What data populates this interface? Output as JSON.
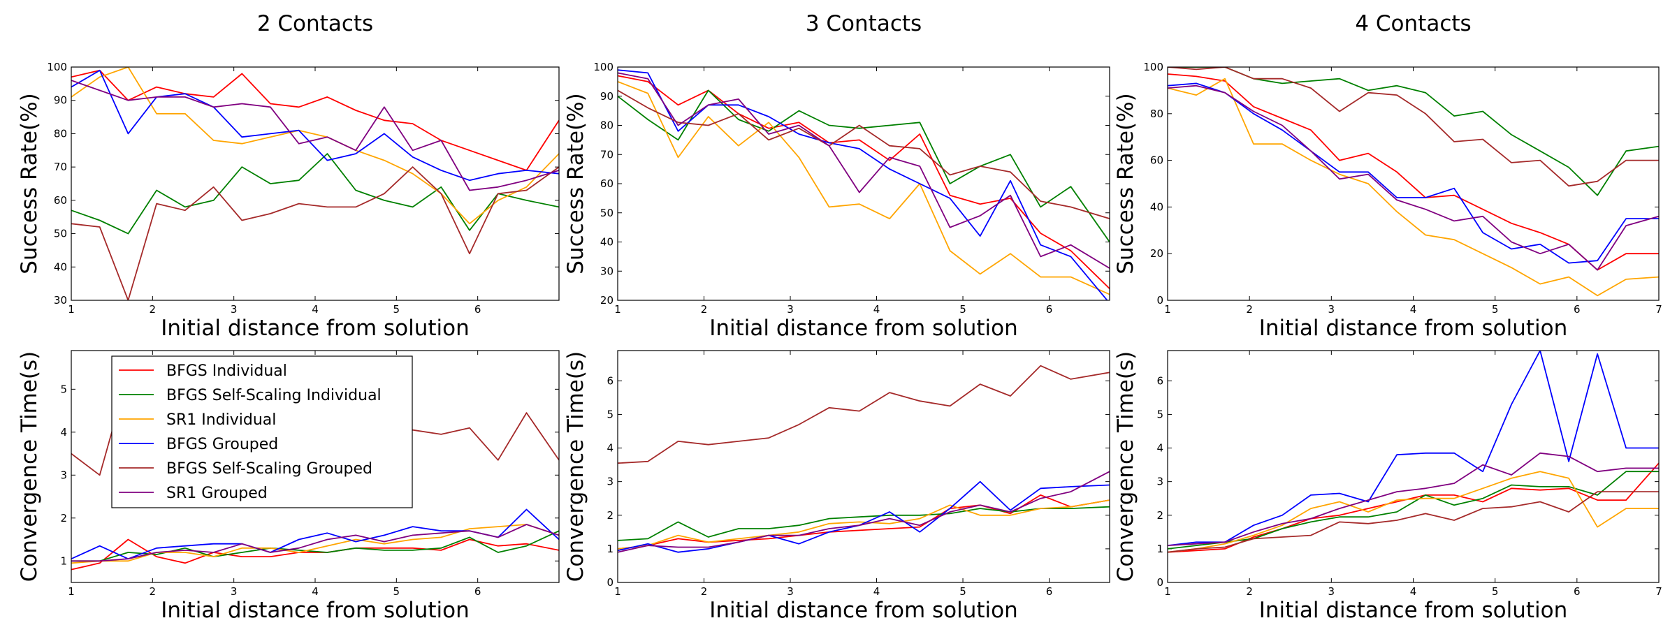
{
  "chart_data": [
    {
      "type": "line",
      "title": "2 Contacts",
      "xlabel": "Initial distance from solution",
      "ylabel": "Success Rate(%)",
      "xlim": [
        1,
        7
      ],
      "ylim": [
        30,
        100
      ],
      "xticks": [
        1,
        2,
        3,
        4,
        5,
        6
      ],
      "yticks": [
        30,
        40,
        50,
        60,
        70,
        80,
        90,
        100
      ],
      "x": [
        1,
        1.35,
        1.7,
        2.05,
        2.4,
        2.75,
        3.1,
        3.45,
        3.8,
        4.15,
        4.5,
        4.85,
        5.2,
        5.55,
        5.9,
        6.25,
        6.6,
        7
      ],
      "series": [
        {
          "name": "BFGS Individual",
          "color": "#ff0000",
          "values": [
            97,
            99,
            90,
            94,
            92,
            91,
            98,
            89,
            88,
            91,
            87,
            84,
            83,
            78,
            75,
            72,
            69,
            84
          ]
        },
        {
          "name": "BFGS Self-Scaling Individual",
          "color": "#008000",
          "values": [
            57,
            54,
            50,
            63,
            58,
            60,
            70,
            65,
            66,
            74,
            63,
            60,
            58,
            64,
            51,
            62,
            60,
            58
          ]
        },
        {
          "name": "SR1 Individual",
          "color": "#ffa500",
          "values": [
            91,
            97,
            100,
            86,
            86,
            78,
            77,
            79,
            81,
            79,
            75,
            72,
            68,
            62,
            53,
            60,
            64,
            74
          ]
        },
        {
          "name": "BFGS Grouped",
          "color": "#0000ff",
          "values": [
            94,
            99,
            80,
            91,
            92,
            88,
            79,
            80,
            81,
            72,
            74,
            80,
            73,
            69,
            66,
            68,
            69,
            68
          ]
        },
        {
          "name": "BFGS Self-Scaling Grouped",
          "color": "#a52a2a",
          "values": [
            53,
            52,
            30,
            59,
            57,
            64,
            54,
            56,
            59,
            58,
            58,
            62,
            70,
            62,
            44,
            62,
            63,
            70
          ]
        },
        {
          "name": "SR1 Grouped",
          "color": "#800080",
          "values": [
            96,
            93,
            90,
            91,
            91,
            88,
            89,
            88,
            77,
            79,
            75,
            88,
            75,
            78,
            63,
            64,
            66,
            69
          ]
        }
      ]
    },
    {
      "type": "line",
      "title": "3 Contacts",
      "xlabel": "Initial distance from solution",
      "ylabel": "Success Rate(%)",
      "xlim": [
        1,
        6.7
      ],
      "ylim": [
        20,
        100
      ],
      "xticks": [
        1,
        2,
        3,
        4,
        5,
        6
      ],
      "yticks": [
        20,
        30,
        40,
        50,
        60,
        70,
        80,
        90,
        100
      ],
      "x": [
        1,
        1.35,
        1.7,
        2.05,
        2.4,
        2.75,
        3.1,
        3.45,
        3.8,
        4.15,
        4.5,
        4.85,
        5.2,
        5.55,
        5.9,
        6.25,
        6.7
      ],
      "series": [
        {
          "name": "BFGS Individual",
          "color": "#ff0000",
          "values": [
            97,
            95,
            87,
            92,
            84,
            79,
            81,
            74,
            75,
            68,
            77,
            56,
            53,
            55,
            43,
            37,
            24
          ]
        },
        {
          "name": "BFGS Self-Scaling Individual",
          "color": "#008000",
          "values": [
            90,
            82,
            75,
            92,
            82,
            78,
            85,
            80,
            79,
            80,
            81,
            60,
            66,
            70,
            52,
            59,
            40
          ]
        },
        {
          "name": "SR1 Individual",
          "color": "#ffa500",
          "values": [
            95,
            91,
            69,
            83,
            73,
            81,
            69,
            52,
            53,
            48,
            60,
            37,
            29,
            36,
            28,
            28,
            22
          ]
        },
        {
          "name": "BFGS Grouped",
          "color": "#0000ff",
          "values": [
            99,
            98,
            78,
            87,
            87,
            83,
            77,
            74,
            72,
            65,
            60,
            55,
            42,
            61,
            39,
            35,
            19
          ]
        },
        {
          "name": "BFGS Self-Scaling Grouped",
          "color": "#a52a2a",
          "values": [
            92,
            86,
            81,
            80,
            84,
            75,
            79,
            73,
            80,
            73,
            72,
            63,
            66,
            64,
            54,
            52,
            48
          ]
        },
        {
          "name": "SR1 Grouped",
          "color": "#800080",
          "values": [
            98,
            96,
            80,
            87,
            89,
            77,
            80,
            73,
            57,
            69,
            66,
            45,
            49,
            56,
            35,
            39,
            31
          ]
        }
      ]
    },
    {
      "type": "line",
      "title": "4 Contacts",
      "xlabel": "Initial distance from solution",
      "ylabel": "Success Rate(%)",
      "xlim": [
        1,
        7
      ],
      "ylim": [
        0,
        100
      ],
      "xticks": [
        1,
        2,
        3,
        4,
        5,
        6,
        7
      ],
      "yticks": [
        0,
        20,
        40,
        60,
        80,
        100
      ],
      "x": [
        1,
        1.35,
        1.7,
        2.05,
        2.4,
        2.75,
        3.1,
        3.45,
        3.8,
        4.15,
        4.5,
        4.85,
        5.2,
        5.55,
        5.9,
        6.25,
        6.6,
        7
      ],
      "series": [
        {
          "name": "BFGS Individual",
          "color": "#ff0000",
          "values": [
            97,
            96,
            94,
            83,
            78,
            73,
            60,
            63,
            55,
            44,
            45,
            39,
            33,
            29,
            24,
            13,
            20,
            20
          ]
        },
        {
          "name": "BFGS Self-Scaling Individual",
          "color": "#008000",
          "values": [
            100,
            100,
            100,
            95,
            93,
            94,
            95,
            90,
            92,
            89,
            79,
            81,
            71,
            64,
            57,
            45,
            64,
            66
          ]
        },
        {
          "name": "SR1 Individual",
          "color": "#ffa500",
          "values": [
            91,
            88,
            95,
            67,
            67,
            60,
            54,
            50,
            38,
            28,
            26,
            20,
            14,
            7,
            10,
            2,
            9,
            10
          ]
        },
        {
          "name": "BFGS Grouped",
          "color": "#0000ff",
          "values": [
            92,
            93,
            89,
            80,
            73,
            64,
            55,
            55,
            44,
            44,
            48,
            29,
            22,
            24,
            16,
            17,
            35,
            35
          ]
        },
        {
          "name": "BFGS Self-Scaling Grouped",
          "color": "#a52a2a",
          "values": [
            100,
            99,
            100,
            95,
            95,
            91,
            81,
            89,
            88,
            80,
            68,
            69,
            59,
            60,
            49,
            51,
            60,
            60
          ]
        },
        {
          "name": "SR1 Grouped",
          "color": "#800080",
          "values": [
            91,
            92,
            89,
            81,
            75,
            64,
            52,
            54,
            43,
            39,
            34,
            36,
            25,
            20,
            24,
            13,
            32,
            36
          ]
        }
      ]
    },
    {
      "type": "line",
      "title": "",
      "xlabel": "Initial distance from solution",
      "ylabel": "Convergence Time(s)",
      "xlim": [
        1,
        7
      ],
      "ylim": [
        0.5,
        5.9
      ],
      "xticks": [
        1,
        2,
        3,
        4,
        5,
        6
      ],
      "yticks": [
        1,
        2,
        3,
        4,
        5
      ],
      "legend": "upper-left",
      "x": [
        1,
        1.35,
        1.7,
        2.05,
        2.4,
        2.75,
        3.1,
        3.45,
        3.8,
        4.15,
        4.5,
        4.85,
        5.2,
        5.55,
        5.9,
        6.25,
        6.6,
        7
      ],
      "series": [
        {
          "name": "BFGS Individual",
          "color": "#ff0000",
          "values": [
            0.8,
            0.95,
            1.5,
            1.1,
            0.95,
            1.2,
            1.1,
            1.1,
            1.2,
            1.2,
            1.3,
            1.3,
            1.3,
            1.25,
            1.5,
            1.35,
            1.4,
            1.25
          ]
        },
        {
          "name": "BFGS Self-Scaling Individual",
          "color": "#008000",
          "values": [
            1.0,
            1.0,
            1.2,
            1.15,
            1.3,
            1.1,
            1.2,
            1.3,
            1.25,
            1.2,
            1.3,
            1.25,
            1.25,
            1.3,
            1.55,
            1.2,
            1.35,
            1.7
          ]
        },
        {
          "name": "SR1 Individual",
          "color": "#ffa500",
          "values": [
            0.95,
            1.0,
            1.0,
            1.2,
            1.2,
            1.1,
            1.3,
            1.3,
            1.2,
            1.35,
            1.5,
            1.4,
            1.5,
            1.55,
            1.75,
            1.8,
            1.85,
            1.6
          ]
        },
        {
          "name": "BFGS Grouped",
          "color": "#0000ff",
          "values": [
            1.05,
            1.35,
            1.05,
            1.3,
            1.35,
            1.4,
            1.4,
            1.2,
            1.5,
            1.65,
            1.45,
            1.6,
            1.8,
            1.7,
            1.7,
            1.55,
            2.2,
            1.5
          ]
        },
        {
          "name": "BFGS Self-Scaling Grouped",
          "color": "#a52a2a",
          "values": [
            3.5,
            3.0,
            5.35,
            3.4,
            3.6,
            3.6,
            3.6,
            3.8,
            3.6,
            3.7,
            3.95,
            3.8,
            4.05,
            3.95,
            4.1,
            3.35,
            4.45,
            3.35
          ]
        },
        {
          "name": "SR1 Grouped",
          "color": "#800080",
          "values": [
            1.0,
            1.0,
            1.05,
            1.2,
            1.25,
            1.2,
            1.4,
            1.2,
            1.3,
            1.5,
            1.6,
            1.45,
            1.6,
            1.65,
            1.7,
            1.55,
            1.85,
            1.6
          ]
        }
      ]
    },
    {
      "type": "line",
      "title": "",
      "xlabel": "Initial distance from solution",
      "ylabel": "Convergence Time(s)",
      "xlim": [
        1,
        6.7
      ],
      "ylim": [
        0,
        6.9
      ],
      "xticks": [
        1,
        2,
        3,
        4,
        5,
        6
      ],
      "yticks": [
        0,
        1,
        2,
        3,
        4,
        5,
        6
      ],
      "x": [
        1,
        1.35,
        1.7,
        2.05,
        2.4,
        2.75,
        3.1,
        3.45,
        3.8,
        4.15,
        4.5,
        4.85,
        5.2,
        5.55,
        5.9,
        6.25,
        6.7
      ],
      "series": [
        {
          "name": "BFGS Individual",
          "color": "#ff0000",
          "values": [
            1.0,
            1.1,
            1.3,
            1.2,
            1.25,
            1.3,
            1.4,
            1.5,
            1.55,
            1.6,
            1.65,
            2.2,
            2.3,
            2.05,
            2.6,
            2.25,
            2.45
          ]
        },
        {
          "name": "BFGS Self-Scaling Individual",
          "color": "#008000",
          "values": [
            1.25,
            1.3,
            1.8,
            1.35,
            1.6,
            1.6,
            1.7,
            1.9,
            1.95,
            2.0,
            2.0,
            2.05,
            2.2,
            2.1,
            2.2,
            2.2,
            2.25
          ]
        },
        {
          "name": "SR1 Individual",
          "color": "#ffa500",
          "values": [
            1.0,
            1.1,
            1.4,
            1.2,
            1.3,
            1.4,
            1.5,
            1.75,
            1.8,
            1.75,
            1.9,
            2.3,
            2.0,
            2.0,
            2.2,
            2.25,
            2.45
          ]
        },
        {
          "name": "BFGS Grouped",
          "color": "#0000ff",
          "values": [
            0.95,
            1.15,
            0.9,
            1.0,
            1.2,
            1.4,
            1.15,
            1.5,
            1.7,
            2.1,
            1.5,
            2.2,
            3.0,
            2.15,
            2.8,
            2.85,
            2.9
          ]
        },
        {
          "name": "BFGS Self-Scaling Grouped",
          "color": "#a52a2a",
          "values": [
            3.55,
            3.6,
            4.2,
            4.1,
            4.2,
            4.3,
            4.7,
            5.2,
            5.1,
            5.65,
            5.4,
            5.25,
            5.9,
            5.55,
            6.45,
            6.05,
            6.25
          ]
        },
        {
          "name": "SR1 Grouped",
          "color": "#800080",
          "values": [
            0.9,
            1.1,
            1.05,
            1.05,
            1.2,
            1.4,
            1.4,
            1.6,
            1.7,
            1.9,
            1.7,
            2.1,
            2.3,
            2.1,
            2.5,
            2.7,
            3.3
          ]
        }
      ]
    },
    {
      "type": "line",
      "title": "",
      "xlabel": "Initial distance from solution",
      "ylabel": "Convergence Time(s)",
      "xlim": [
        1,
        7
      ],
      "ylim": [
        0,
        6.9
      ],
      "xticks": [
        1,
        2,
        3,
        4,
        5,
        6,
        7
      ],
      "yticks": [
        0,
        1,
        2,
        3,
        4,
        5,
        6
      ],
      "x": [
        1,
        1.35,
        1.7,
        2.05,
        2.4,
        2.75,
        3.1,
        3.45,
        3.8,
        4.15,
        4.5,
        4.85,
        5.2,
        5.55,
        5.9,
        6.25,
        6.6,
        7
      ],
      "series": [
        {
          "name": "BFGS Individual",
          "color": "#ff0000",
          "values": [
            0.9,
            0.95,
            1.0,
            1.35,
            1.6,
            1.9,
            2.0,
            2.2,
            2.4,
            2.6,
            2.6,
            2.4,
            2.8,
            2.75,
            2.8,
            2.45,
            2.45,
            3.55
          ]
        },
        {
          "name": "BFGS Self-Scaling Individual",
          "color": "#008000",
          "values": [
            1.0,
            1.1,
            1.2,
            1.3,
            1.6,
            1.8,
            1.95,
            1.95,
            2.1,
            2.6,
            2.3,
            2.5,
            2.9,
            2.85,
            2.85,
            2.6,
            3.3,
            3.3
          ]
        },
        {
          "name": "SR1 Individual",
          "color": "#ffa500",
          "values": [
            0.9,
            1.0,
            1.15,
            1.4,
            1.7,
            2.2,
            2.4,
            2.1,
            2.45,
            2.5,
            2.5,
            2.8,
            3.1,
            3.3,
            3.1,
            1.65,
            2.2,
            2.2
          ]
        },
        {
          "name": "BFGS Grouped",
          "color": "#0000ff",
          "values": [
            1.1,
            1.2,
            1.2,
            1.7,
            2.0,
            2.6,
            2.65,
            2.4,
            3.8,
            3.85,
            3.85,
            3.3,
            5.3,
            6.9,
            3.6,
            6.8,
            4.0,
            4.0
          ]
        },
        {
          "name": "BFGS Self-Scaling Grouped",
          "color": "#a52a2a",
          "values": [
            0.9,
            1.0,
            1.05,
            1.3,
            1.35,
            1.4,
            1.8,
            1.75,
            1.85,
            2.05,
            1.85,
            2.2,
            2.25,
            2.4,
            2.1,
            2.7,
            2.7,
            2.7
          ]
        },
        {
          "name": "SR1 Grouped",
          "color": "#800080",
          "values": [
            1.1,
            1.15,
            1.2,
            1.5,
            1.75,
            1.9,
            2.2,
            2.45,
            2.7,
            2.8,
            2.95,
            3.5,
            3.2,
            3.85,
            3.75,
            3.3,
            3.4,
            3.4
          ]
        }
      ]
    }
  ]
}
